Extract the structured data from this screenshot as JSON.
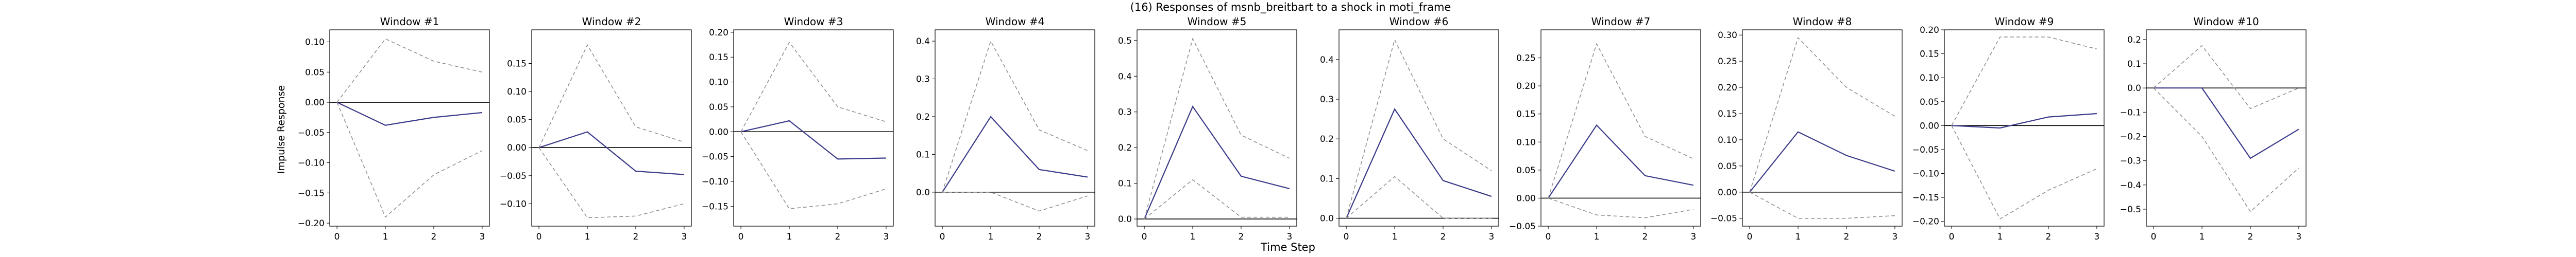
{
  "figure": {
    "suptitle": "(16) Responses of msnb_breitbart to a shock in moti_frame",
    "xlabel": "Time Step",
    "ylabel": "Impulse Response"
  },
  "colors": {
    "response": "#3b3b8a",
    "band": "#8c8c8c",
    "zero_line": "#000000",
    "frame": "#000000"
  },
  "chart_data": [
    {
      "type": "line",
      "title": "Window #1",
      "x": [
        0,
        1,
        2,
        3
      ],
      "ylim": [
        -0.205,
        0.12
      ],
      "xticks": [
        "0",
        "1",
        "2",
        "3"
      ],
      "yticks": [
        -0.2,
        -0.15,
        -0.1,
        -0.05,
        0.0,
        0.05,
        0.1
      ],
      "ytick_labels": [
        "−0.20",
        "−0.15",
        "−0.10",
        "−0.05",
        "0.00",
        "0.05",
        "0.10"
      ],
      "series": [
        {
          "role": "response",
          "values": [
            0.0,
            -0.038,
            -0.025,
            -0.017
          ]
        },
        {
          "role": "upper",
          "values": [
            0.0,
            0.105,
            0.068,
            0.05
          ]
        },
        {
          "role": "lower",
          "values": [
            0.0,
            -0.19,
            -0.12,
            -0.08
          ]
        }
      ]
    },
    {
      "type": "line",
      "title": "Window #2",
      "x": [
        0,
        1,
        2,
        3
      ],
      "ylim": [
        -0.14,
        0.21
      ],
      "xticks": [
        "0",
        "1",
        "2",
        "3"
      ],
      "yticks": [
        -0.1,
        -0.05,
        0.0,
        0.05,
        0.1,
        0.15
      ],
      "ytick_labels": [
        "−0.10",
        "−0.05",
        "0.00",
        "0.05",
        "0.10",
        "0.15"
      ],
      "series": [
        {
          "role": "response",
          "values": [
            0.0,
            0.028,
            -0.042,
            -0.048
          ]
        },
        {
          "role": "upper",
          "values": [
            0.0,
            0.183,
            0.037,
            0.01
          ]
        },
        {
          "role": "lower",
          "values": [
            0.0,
            -0.125,
            -0.122,
            -0.1
          ]
        }
      ]
    },
    {
      "type": "line",
      "title": "Window #3",
      "x": [
        0,
        1,
        2,
        3
      ],
      "ylim": [
        -0.19,
        0.205
      ],
      "xticks": [
        "0",
        "1",
        "2",
        "3"
      ],
      "yticks": [
        -0.15,
        -0.1,
        -0.05,
        0.0,
        0.05,
        0.1,
        0.15,
        0.2
      ],
      "ytick_labels": [
        "−0.15",
        "−0.10",
        "−0.05",
        "0.00",
        "0.05",
        "0.10",
        "0.15",
        "0.20"
      ],
      "series": [
        {
          "role": "response",
          "values": [
            0.0,
            0.022,
            -0.055,
            -0.053
          ]
        },
        {
          "role": "upper",
          "values": [
            0.0,
            0.18,
            0.05,
            0.02
          ]
        },
        {
          "role": "lower",
          "values": [
            0.0,
            -0.155,
            -0.145,
            -0.115
          ]
        }
      ]
    },
    {
      "type": "line",
      "title": "Window #4",
      "x": [
        0,
        1,
        2,
        3
      ],
      "ylim": [
        -0.09,
        0.43
      ],
      "xticks": [
        "0",
        "1",
        "2",
        "3"
      ],
      "yticks": [
        0.0,
        0.1,
        0.2,
        0.3,
        0.4
      ],
      "ytick_labels": [
        "0.0",
        "0.1",
        "0.2",
        "0.3",
        "0.4"
      ],
      "series": [
        {
          "role": "response",
          "values": [
            0.0,
            0.2,
            0.06,
            0.04
          ]
        },
        {
          "role": "upper",
          "values": [
            0.0,
            0.4,
            0.165,
            0.11
          ]
        },
        {
          "role": "lower",
          "values": [
            0.0,
            0.0,
            -0.05,
            -0.01
          ]
        }
      ]
    },
    {
      "type": "line",
      "title": "Window #5",
      "x": [
        0,
        1,
        2,
        3
      ],
      "ylim": [
        -0.02,
        0.53
      ],
      "xticks": [
        "0",
        "1",
        "2",
        "3"
      ],
      "yticks": [
        0.0,
        0.1,
        0.2,
        0.3,
        0.4,
        0.5
      ],
      "ytick_labels": [
        "0.0",
        "0.1",
        "0.2",
        "0.3",
        "0.4",
        "0.5"
      ],
      "series": [
        {
          "role": "response",
          "values": [
            0.0,
            0.315,
            0.12,
            0.085
          ]
        },
        {
          "role": "upper",
          "values": [
            0.0,
            0.505,
            0.235,
            0.17
          ]
        },
        {
          "role": "lower",
          "values": [
            0.0,
            0.11,
            0.005,
            0.005
          ]
        }
      ]
    },
    {
      "type": "line",
      "title": "Window #6",
      "x": [
        0,
        1,
        2,
        3
      ],
      "ylim": [
        -0.02,
        0.475
      ],
      "xticks": [
        "0",
        "1",
        "2",
        "3"
      ],
      "yticks": [
        0.0,
        0.1,
        0.2,
        0.3,
        0.4
      ],
      "ytick_labels": [
        "0.0",
        "0.1",
        "0.2",
        "0.3",
        "0.4"
      ],
      "series": [
        {
          "role": "response",
          "values": [
            0.0,
            0.275,
            0.095,
            0.055
          ]
        },
        {
          "role": "upper",
          "values": [
            0.0,
            0.45,
            0.2,
            0.12
          ]
        },
        {
          "role": "lower",
          "values": [
            0.0,
            0.105,
            0.0,
            0.0
          ]
        }
      ]
    },
    {
      "type": "line",
      "title": "Window #7",
      "x": [
        0,
        1,
        2,
        3
      ],
      "ylim": [
        -0.05,
        0.3
      ],
      "xticks": [
        "0",
        "1",
        "2",
        "3"
      ],
      "yticks": [
        -0.05,
        0.0,
        0.05,
        0.1,
        0.15,
        0.2,
        0.25
      ],
      "ytick_labels": [
        "−0.05",
        "0.00",
        "0.05",
        "0.10",
        "0.15",
        "0.20",
        "0.25"
      ],
      "series": [
        {
          "role": "response",
          "values": [
            0.0,
            0.13,
            0.04,
            0.023
          ]
        },
        {
          "role": "upper",
          "values": [
            0.0,
            0.275,
            0.11,
            0.07
          ]
        },
        {
          "role": "lower",
          "values": [
            0.0,
            -0.03,
            -0.035,
            -0.02
          ]
        }
      ]
    },
    {
      "type": "line",
      "title": "Window #8",
      "x": [
        0,
        1,
        2,
        3
      ],
      "ylim": [
        -0.065,
        0.31
      ],
      "xticks": [
        "0",
        "1",
        "2",
        "3"
      ],
      "yticks": [
        -0.05,
        0.0,
        0.05,
        0.1,
        0.15,
        0.2,
        0.25,
        0.3
      ],
      "ytick_labels": [
        "−0.05",
        "0.00",
        "0.05",
        "0.10",
        "0.15",
        "0.20",
        "0.25",
        "0.30"
      ],
      "series": [
        {
          "role": "response",
          "values": [
            0.0,
            0.115,
            0.07,
            0.04
          ]
        },
        {
          "role": "upper",
          "values": [
            0.0,
            0.295,
            0.2,
            0.145
          ]
        },
        {
          "role": "lower",
          "values": [
            0.0,
            -0.05,
            -0.05,
            -0.045
          ]
        }
      ]
    },
    {
      "type": "line",
      "title": "Window #9",
      "x": [
        0,
        1,
        2,
        3
      ],
      "ylim": [
        -0.21,
        0.2
      ],
      "xticks": [
        "0",
        "1",
        "2",
        "3"
      ],
      "yticks": [
        -0.2,
        -0.15,
        -0.1,
        -0.05,
        0.0,
        0.05,
        0.1,
        0.15,
        0.2
      ],
      "ytick_labels": [
        "−0.20",
        "−0.15",
        "−0.10",
        "−0.05",
        "0.00",
        "0.05",
        "0.10",
        "0.15",
        "0.20"
      ],
      "series": [
        {
          "role": "response",
          "values": [
            0.0,
            -0.005,
            0.018,
            0.025
          ]
        },
        {
          "role": "upper",
          "values": [
            0.0,
            0.185,
            0.185,
            0.16
          ]
        },
        {
          "role": "lower",
          "values": [
            0.0,
            -0.195,
            -0.135,
            -0.09
          ]
        }
      ]
    },
    {
      "type": "line",
      "title": "Window #10",
      "x": [
        0,
        1,
        2,
        3
      ],
      "ylim": [
        -0.57,
        0.24
      ],
      "xticks": [
        "0",
        "1",
        "2",
        "3"
      ],
      "yticks": [
        -0.5,
        -0.4,
        -0.3,
        -0.2,
        -0.1,
        0.0,
        0.1,
        0.2
      ],
      "ytick_labels": [
        "−0.5",
        "−0.4",
        "−0.3",
        "−0.2",
        "−0.1",
        "0.0",
        "0.1",
        "0.2"
      ],
      "series": [
        {
          "role": "response",
          "values": [
            0.0,
            0.0,
            -0.29,
            -0.17
          ]
        },
        {
          "role": "upper",
          "values": [
            0.0,
            0.175,
            -0.085,
            0.0
          ]
        },
        {
          "role": "lower",
          "values": [
            0.0,
            -0.2,
            -0.51,
            -0.33
          ]
        }
      ]
    }
  ]
}
